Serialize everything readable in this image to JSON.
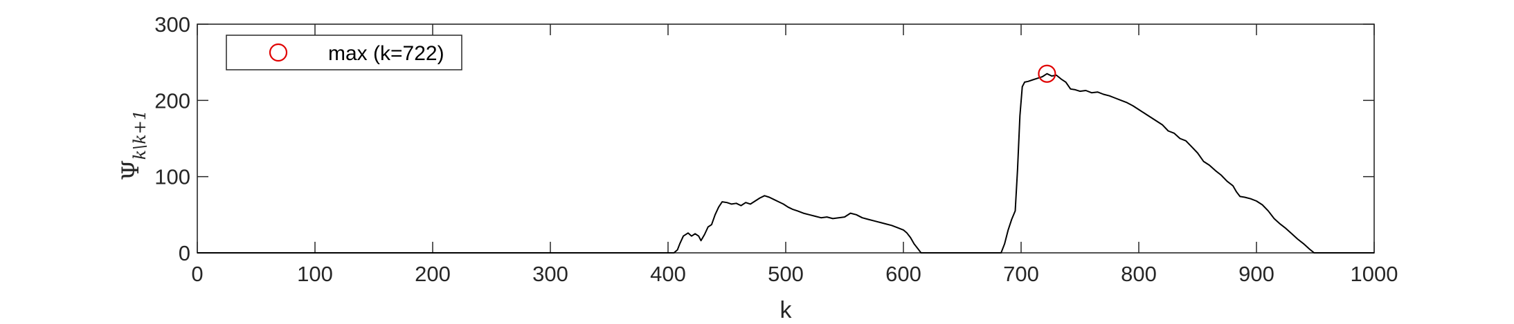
{
  "chart_data": {
    "type": "line",
    "title": "",
    "xlabel": "k",
    "ylabel": "Ψ",
    "ylabel_subscript": "k\\k+1",
    "xlim": [
      0,
      1000
    ],
    "ylim": [
      0,
      300
    ],
    "xticks": [
      0,
      100,
      200,
      300,
      400,
      500,
      600,
      700,
      800,
      900,
      1000
    ],
    "yticks": [
      0,
      100,
      200,
      300
    ],
    "grid": false,
    "legend": {
      "position": "top-left",
      "entries": [
        "max (k=722)"
      ]
    },
    "series": [
      {
        "color": "#000000",
        "points": [
          [
            0,
            0
          ],
          [
            405,
            0
          ],
          [
            408,
            4
          ],
          [
            410,
            12
          ],
          [
            413,
            22
          ],
          [
            417,
            26
          ],
          [
            420,
            22
          ],
          [
            423,
            25
          ],
          [
            426,
            22
          ],
          [
            428,
            16
          ],
          [
            431,
            24
          ],
          [
            434,
            34
          ],
          [
            437,
            37
          ],
          [
            440,
            50
          ],
          [
            443,
            60
          ],
          [
            446,
            67
          ],
          [
            450,
            66
          ],
          [
            454,
            64
          ],
          [
            458,
            65
          ],
          [
            462,
            62
          ],
          [
            466,
            66
          ],
          [
            470,
            64
          ],
          [
            474,
            68
          ],
          [
            478,
            72
          ],
          [
            482,
            75
          ],
          [
            486,
            73
          ],
          [
            490,
            70
          ],
          [
            494,
            67
          ],
          [
            498,
            64
          ],
          [
            502,
            60
          ],
          [
            506,
            57
          ],
          [
            510,
            55
          ],
          [
            515,
            52
          ],
          [
            520,
            50
          ],
          [
            525,
            48
          ],
          [
            530,
            46
          ],
          [
            535,
            47
          ],
          [
            540,
            45
          ],
          [
            545,
            46
          ],
          [
            550,
            47
          ],
          [
            555,
            52
          ],
          [
            560,
            50
          ],
          [
            565,
            46
          ],
          [
            570,
            44
          ],
          [
            575,
            42
          ],
          [
            580,
            40
          ],
          [
            585,
            38
          ],
          [
            590,
            36
          ],
          [
            595,
            33
          ],
          [
            600,
            30
          ],
          [
            603,
            26
          ],
          [
            606,
            20
          ],
          [
            609,
            12
          ],
          [
            612,
            6
          ],
          [
            614,
            2
          ],
          [
            615,
            0
          ],
          [
            683,
            0
          ],
          [
            686,
            12
          ],
          [
            689,
            30
          ],
          [
            692,
            44
          ],
          [
            695,
            55
          ],
          [
            697,
            110
          ],
          [
            699,
            180
          ],
          [
            701,
            218
          ],
          [
            703,
            224
          ],
          [
            706,
            225
          ],
          [
            710,
            227
          ],
          [
            714,
            229
          ],
          [
            718,
            231
          ],
          [
            722,
            235
          ],
          [
            726,
            232
          ],
          [
            730,
            233
          ],
          [
            734,
            228
          ],
          [
            738,
            224
          ],
          [
            742,
            215
          ],
          [
            746,
            214
          ],
          [
            750,
            212
          ],
          [
            755,
            213
          ],
          [
            760,
            210
          ],
          [
            765,
            211
          ],
          [
            770,
            208
          ],
          [
            775,
            206
          ],
          [
            780,
            203
          ],
          [
            785,
            200
          ],
          [
            790,
            197
          ],
          [
            795,
            193
          ],
          [
            800,
            188
          ],
          [
            805,
            183
          ],
          [
            810,
            178
          ],
          [
            815,
            173
          ],
          [
            820,
            168
          ],
          [
            825,
            160
          ],
          [
            830,
            157
          ],
          [
            835,
            150
          ],
          [
            840,
            147
          ],
          [
            845,
            139
          ],
          [
            850,
            131
          ],
          [
            855,
            120
          ],
          [
            860,
            115
          ],
          [
            865,
            108
          ],
          [
            870,
            102
          ],
          [
            875,
            94
          ],
          [
            880,
            88
          ],
          [
            883,
            80
          ],
          [
            886,
            74
          ],
          [
            890,
            73
          ],
          [
            895,
            71
          ],
          [
            900,
            68
          ],
          [
            905,
            63
          ],
          [
            910,
            55
          ],
          [
            915,
            45
          ],
          [
            920,
            38
          ],
          [
            925,
            32
          ],
          [
            930,
            25
          ],
          [
            935,
            18
          ],
          [
            940,
            12
          ],
          [
            945,
            5
          ],
          [
            949,
            0
          ],
          [
            1000,
            0
          ]
        ]
      }
    ],
    "marker": {
      "name": "max (k=722)",
      "x": 722,
      "y": 235,
      "shape": "circle",
      "color": "#e00000"
    }
  }
}
